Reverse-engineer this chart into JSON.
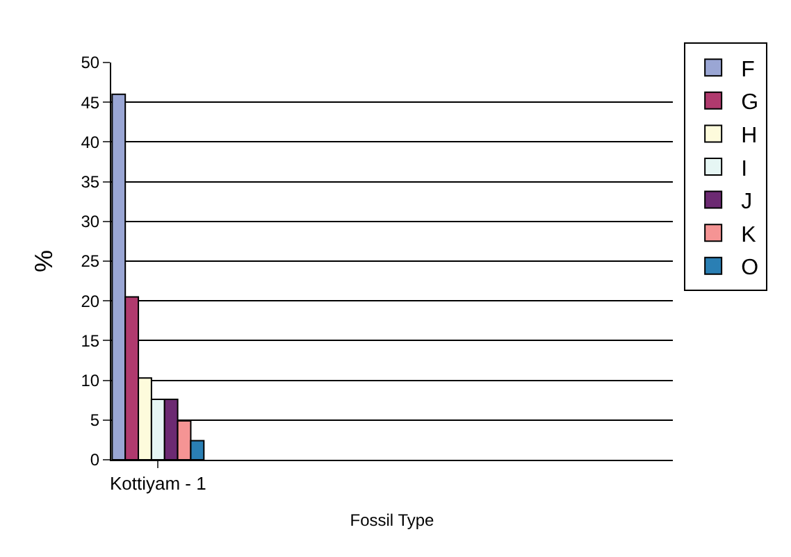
{
  "chart_data": {
    "type": "bar",
    "xlabel": "Fossil Type",
    "ylabel": "%",
    "categories": [
      "Kottiyam - 1",
      null,
      null,
      null,
      null,
      null
    ],
    "series": [
      {
        "name": "F",
        "color": "#9aa6d4",
        "values": [
          46,
          null,
          null,
          null,
          null,
          null
        ]
      },
      {
        "name": "G",
        "color": "#b03a6e",
        "values": [
          20.5,
          null,
          null,
          null,
          null,
          null
        ]
      },
      {
        "name": "H",
        "color": "#fdfbdc",
        "values": [
          10.3,
          null,
          null,
          null,
          null,
          null
        ]
      },
      {
        "name": "I",
        "color": "#e6f6f4",
        "values": [
          7.6,
          null,
          null,
          null,
          null,
          null
        ]
      },
      {
        "name": "J",
        "color": "#6c2a72",
        "values": [
          7.6,
          null,
          null,
          null,
          null,
          null
        ]
      },
      {
        "name": "K",
        "color": "#f59494",
        "values": [
          4.9,
          null,
          null,
          null,
          null,
          null
        ]
      },
      {
        "name": "O",
        "color": "#2a7fb4",
        "values": [
          2.4,
          null,
          null,
          null,
          null,
          null
        ]
      }
    ],
    "ylim": [
      0,
      50
    ],
    "yticks": [
      0,
      5,
      10,
      15,
      20,
      25,
      30,
      35,
      40,
      45,
      50
    ],
    "grid": "y",
    "legend": "right"
  }
}
